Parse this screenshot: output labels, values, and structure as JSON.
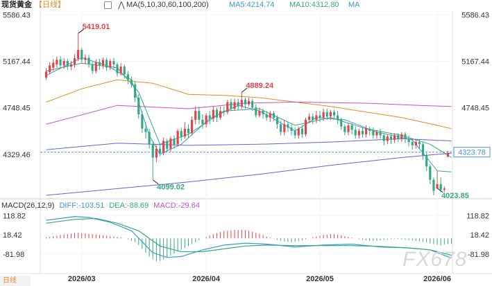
{
  "header": {
    "instrument": "现货黄金",
    "period": "【日线】",
    "ma_label": "MA(5,10,30,60,100,200)",
    "ma5": "MA5:4214.74",
    "ma10": "MA10:4312.80",
    "ma_more": "MA"
  },
  "macd_header": {
    "label": "MACD(26,12,9)",
    "diff": "DIFF:-103.51",
    "dea": "DEA:-88.69",
    "macd": "MACD:-29.64"
  },
  "watermark": "FX678",
  "footer_left": "日线",
  "colors": {
    "up": "#e0434b",
    "down": "#35a882",
    "ma5": "#3c9ac9",
    "ma10": "#35a882",
    "ma30": "#e58a2a",
    "ma60": "#c254c8",
    "ma100": "#6b5fd6",
    "ma200": "#6b5fd6",
    "diff": "#3c9ac9",
    "dea": "#35a882",
    "current_price": "#4a8fdb"
  },
  "chart_data": [
    {
      "type": "candlestick",
      "title": "现货黄金 日线",
      "price_axis_ticks": [
        "5586.43",
        "5167.44",
        "4748.45",
        "4329.46"
      ],
      "x_tick_labels": [
        "2026/03",
        "2026/04",
        "2026/05",
        "2026/06"
      ],
      "ylim": [
        3960,
        5620
      ],
      "current_price": "4323.78",
      "annotations": [
        {
          "text": "5419.01",
          "value": 5419.01,
          "index": 9,
          "kind": "high"
        },
        {
          "text": "4889.24",
          "value": 4889.24,
          "index": 55,
          "kind": "high"
        },
        {
          "text": "4099.02",
          "value": 4099.02,
          "index": 30,
          "kind": "low"
        },
        {
          "text": "4023.85",
          "value": 4023.85,
          "index": 110,
          "kind": "low"
        }
      ],
      "month_start_index": [
        10,
        45,
        77,
        110
      ],
      "candles": [
        [
          5020,
          5075,
          5000,
          5105
        ],
        [
          5070,
          5130,
          5050,
          5160
        ],
        [
          5110,
          5155,
          5080,
          5190
        ],
        [
          5140,
          5180,
          5110,
          5210
        ],
        [
          5185,
          5130,
          5100,
          5215
        ],
        [
          5130,
          5170,
          5100,
          5195
        ],
        [
          5170,
          5120,
          5090,
          5190
        ],
        [
          5120,
          5140,
          5090,
          5170
        ],
        [
          5140,
          5195,
          5110,
          5230
        ],
        [
          5190,
          5270,
          5170,
          5419.01
        ],
        [
          5270,
          5180,
          5150,
          5290
        ],
        [
          5180,
          5200,
          5140,
          5230
        ],
        [
          5200,
          5140,
          5110,
          5225
        ],
        [
          5140,
          5080,
          5050,
          5165
        ],
        [
          5080,
          5160,
          5060,
          5185
        ],
        [
          5160,
          5130,
          5090,
          5190
        ],
        [
          5130,
          5180,
          5100,
          5200
        ],
        [
          5180,
          5110,
          5080,
          5200
        ],
        [
          5110,
          5170,
          5090,
          5190
        ],
        [
          5170,
          5140,
          5090,
          5200
        ],
        [
          5140,
          5060,
          5030,
          5160
        ],
        [
          5060,
          5120,
          5040,
          5150
        ],
        [
          5120,
          5050,
          5010,
          5140
        ],
        [
          5050,
          5000,
          4960,
          5080
        ],
        [
          5000,
          4960,
          4930,
          5030
        ],
        [
          4960,
          4840,
          4800,
          4990
        ],
        [
          4840,
          4690,
          4650,
          4870
        ],
        [
          4690,
          4560,
          4520,
          4720
        ],
        [
          4560,
          4530,
          4470,
          4620
        ],
        [
          4530,
          4420,
          4380,
          4560
        ],
        [
          4420,
          4300,
          4099.02,
          4450
        ],
        [
          4300,
          4380,
          4260,
          4410
        ],
        [
          4380,
          4340,
          4310,
          4420
        ],
        [
          4340,
          4450,
          4320,
          4480
        ],
        [
          4450,
          4380,
          4350,
          4470
        ],
        [
          4380,
          4470,
          4350,
          4490
        ],
        [
          4470,
          4420,
          4380,
          4500
        ],
        [
          4420,
          4540,
          4400,
          4560
        ],
        [
          4540,
          4490,
          4450,
          4570
        ],
        [
          4490,
          4560,
          4470,
          4620
        ],
        [
          4560,
          4520,
          4480,
          4600
        ],
        [
          4520,
          4640,
          4500,
          4670
        ],
        [
          4640,
          4720,
          4600,
          4760
        ],
        [
          4720,
          4640,
          4600,
          4760
        ],
        [
          4640,
          4600,
          4560,
          4690
        ],
        [
          4600,
          4680,
          4570,
          4700
        ],
        [
          4680,
          4650,
          4600,
          4720
        ],
        [
          4650,
          4730,
          4620,
          4760
        ],
        [
          4730,
          4660,
          4620,
          4750
        ],
        [
          4660,
          4720,
          4640,
          4760
        ],
        [
          4720,
          4710,
          4670,
          4760
        ],
        [
          4710,
          4800,
          4690,
          4820
        ],
        [
          4800,
          4740,
          4720,
          4830
        ],
        [
          4740,
          4800,
          4720,
          4830
        ],
        [
          4800,
          4760,
          4730,
          4830
        ],
        [
          4760,
          4820,
          4740,
          4889.24
        ],
        [
          4820,
          4780,
          4740,
          4840
        ],
        [
          4780,
          4810,
          4760,
          4840
        ],
        [
          4810,
          4750,
          4720,
          4830
        ],
        [
          4750,
          4680,
          4660,
          4780
        ],
        [
          4680,
          4720,
          4660,
          4750
        ],
        [
          4720,
          4690,
          4650,
          4740
        ],
        [
          4690,
          4660,
          4630,
          4720
        ],
        [
          4660,
          4700,
          4620,
          4720
        ],
        [
          4700,
          4660,
          4630,
          4720
        ],
        [
          4660,
          4600,
          4560,
          4680
        ],
        [
          4600,
          4530,
          4500,
          4630
        ],
        [
          4530,
          4600,
          4500,
          4640
        ],
        [
          4600,
          4570,
          4530,
          4620
        ],
        [
          4570,
          4540,
          4500,
          4600
        ],
        [
          4540,
          4500,
          4470,
          4570
        ],
        [
          4500,
          4560,
          4470,
          4580
        ],
        [
          4560,
          4510,
          4480,
          4590
        ],
        [
          4510,
          4640,
          4490,
          4660
        ],
        [
          4640,
          4670,
          4610,
          4700
        ],
        [
          4670,
          4640,
          4600,
          4700
        ],
        [
          4640,
          4680,
          4610,
          4720
        ],
        [
          4680,
          4660,
          4620,
          4720
        ],
        [
          4660,
          4710,
          4630,
          4740
        ],
        [
          4710,
          4670,
          4640,
          4740
        ],
        [
          4670,
          4710,
          4640,
          4730
        ],
        [
          4710,
          4680,
          4640,
          4730
        ],
        [
          4680,
          4640,
          4600,
          4720
        ],
        [
          4640,
          4580,
          4550,
          4660
        ],
        [
          4580,
          4530,
          4500,
          4600
        ],
        [
          4530,
          4590,
          4500,
          4610
        ],
        [
          4590,
          4550,
          4510,
          4610
        ],
        [
          4550,
          4500,
          4470,
          4580
        ],
        [
          4500,
          4540,
          4470,
          4560
        ],
        [
          4540,
          4510,
          4480,
          4570
        ],
        [
          4510,
          4560,
          4480,
          4590
        ],
        [
          4560,
          4540,
          4500,
          4580
        ],
        [
          4540,
          4500,
          4470,
          4570
        ],
        [
          4500,
          4530,
          4470,
          4550
        ],
        [
          4530,
          4500,
          4470,
          4560
        ],
        [
          4500,
          4450,
          4410,
          4520
        ],
        [
          4450,
          4490,
          4420,
          4510
        ],
        [
          4490,
          4460,
          4420,
          4520
        ],
        [
          4460,
          4500,
          4430,
          4520
        ],
        [
          4500,
          4470,
          4440,
          4520
        ],
        [
          4470,
          4510,
          4440,
          4530
        ],
        [
          4510,
          4470,
          4430,
          4530
        ],
        [
          4470,
          4440,
          4400,
          4500
        ],
        [
          4440,
          4410,
          4370,
          4460
        ],
        [
          4410,
          4440,
          4380,
          4460
        ],
        [
          4440,
          4420,
          4380,
          4460
        ],
        [
          4420,
          4320,
          4280,
          4440
        ],
        [
          4320,
          4220,
          4180,
          4340
        ],
        [
          4220,
          4100,
          4060,
          4240
        ],
        [
          4100,
          4000,
          3960,
          4120
        ],
        [
          4020,
          4060,
          4023.85,
          4180
        ],
        [
          4060,
          4010,
          3990,
          4120
        ],
        [
          4010,
          4020,
          3990,
          4040
        ],
        [
          4310,
          4340,
          4300,
          4360
        ]
      ],
      "moving_averages": [
        {
          "name": "MA5",
          "values": [
            [
              0,
              5040
            ],
            [
              10,
              5200
            ],
            [
              17,
              5130
            ],
            [
              24,
              5000
            ],
            [
              29,
              4500
            ],
            [
              32,
              4330
            ],
            [
              38,
              4420
            ],
            [
              46,
              4650
            ],
            [
              54,
              4770
            ],
            [
              60,
              4720
            ],
            [
              70,
              4540
            ],
            [
              76,
              4660
            ],
            [
              84,
              4640
            ],
            [
              93,
              4530
            ],
            [
              103,
              4460
            ],
            [
              110,
              4180
            ],
            [
              114,
              4170
            ]
          ]
        },
        {
          "name": "MA10",
          "values": [
            [
              0,
              5080
            ],
            [
              10,
              5150
            ],
            [
              20,
              5110
            ],
            [
              26,
              4890
            ],
            [
              32,
              4420
            ],
            [
              40,
              4510
            ],
            [
              50,
              4720
            ],
            [
              60,
              4740
            ],
            [
              70,
              4590
            ],
            [
              80,
              4660
            ],
            [
              90,
              4560
            ],
            [
              100,
              4500
            ],
            [
              108,
              4420
            ],
            [
              114,
              4300
            ]
          ]
        },
        {
          "name": "MA30",
          "values": [
            [
              0,
              4800
            ],
            [
              10,
              4920
            ],
            [
              20,
              5000
            ],
            [
              30,
              4970
            ],
            [
              40,
              4870
            ],
            [
              50,
              4860
            ],
            [
              60,
              4840
            ],
            [
              70,
              4800
            ],
            [
              80,
              4760
            ],
            [
              90,
              4710
            ],
            [
              100,
              4660
            ],
            [
              110,
              4590
            ],
            [
              114,
              4560
            ]
          ]
        },
        {
          "name": "MA60",
          "values": [
            [
              0,
              4600
            ],
            [
              20,
              4770
            ],
            [
              40,
              4740
            ],
            [
              56,
              4790
            ],
            [
              70,
              4800
            ],
            [
              90,
              4790
            ],
            [
              105,
              4770
            ],
            [
              114,
              4760
            ]
          ]
        },
        {
          "name": "MA100",
          "values": [
            [
              0,
              4370
            ],
            [
              20,
              4430
            ],
            [
              40,
              4410
            ],
            [
              60,
              4420
            ],
            [
              80,
              4440
            ],
            [
              100,
              4470
            ],
            [
              114,
              4450
            ]
          ]
        },
        {
          "name": "MA200",
          "values": [
            [
              0,
              3960
            ],
            [
              20,
              4020
            ],
            [
              40,
              4080
            ],
            [
              60,
              4150
            ],
            [
              80,
              4230
            ],
            [
              100,
              4300
            ],
            [
              114,
              4340
            ]
          ]
        }
      ]
    },
    {
      "type": "macd",
      "title": "MACD(26,12,9)",
      "axis_ticks": [
        "118.82",
        "18.42",
        "-81.98"
      ],
      "ylim": [
        -130,
        150
      ],
      "diff": [
        [
          0,
          95
        ],
        [
          8,
          115
        ],
        [
          12,
          110
        ],
        [
          18,
          85
        ],
        [
          24,
          40
        ],
        [
          30,
          -75
        ],
        [
          34,
          -100
        ],
        [
          38,
          -95
        ],
        [
          44,
          -60
        ],
        [
          50,
          -35
        ],
        [
          56,
          -25
        ],
        [
          62,
          -30
        ],
        [
          70,
          -45
        ],
        [
          78,
          -35
        ],
        [
          86,
          -30
        ],
        [
          94,
          -45
        ],
        [
          102,
          -50
        ],
        [
          108,
          -60
        ],
        [
          114,
          -103.51
        ]
      ],
      "dea": [
        [
          0,
          80
        ],
        [
          8,
          100
        ],
        [
          14,
          105
        ],
        [
          20,
          80
        ],
        [
          26,
          40
        ],
        [
          32,
          -40
        ],
        [
          38,
          -70
        ],
        [
          44,
          -70
        ],
        [
          50,
          -55
        ],
        [
          56,
          -40
        ],
        [
          62,
          -35
        ],
        [
          70,
          -38
        ],
        [
          78,
          -38
        ],
        [
          86,
          -38
        ],
        [
          94,
          -42
        ],
        [
          102,
          -50
        ],
        [
          108,
          -60
        ],
        [
          114,
          -88.69
        ]
      ],
      "histogram": [
        5,
        8,
        12,
        15,
        18,
        20,
        22,
        25,
        28,
        30,
        28,
        26,
        24,
        22,
        20,
        18,
        16,
        14,
        12,
        10,
        8,
        5,
        0,
        -5,
        -12,
        -20,
        -35,
        -55,
        -75,
        -95,
        -110,
        -120,
        -118,
        -110,
        -100,
        -90,
        -80,
        -70,
        -60,
        -50,
        -40,
        -30,
        -20,
        -10,
        0,
        8,
        15,
        22,
        28,
        34,
        38,
        40,
        42,
        44,
        45,
        46,
        44,
        40,
        35,
        30,
        25,
        18,
        10,
        4,
        -2,
        -8,
        -12,
        -16,
        -18,
        -20,
        -18,
        -15,
        -10,
        -5,
        0,
        5,
        10,
        14,
        18,
        20,
        22,
        22,
        20,
        16,
        12,
        8,
        4,
        0,
        -4,
        -8,
        -10,
        -12,
        -14,
        -12,
        -10,
        -8,
        -6,
        -4,
        -2,
        -4,
        -6,
        -8,
        -10,
        -12,
        -14,
        -16,
        -18,
        -22,
        -26,
        -30,
        -34,
        -36,
        -32,
        -29.64,
        -29.64
      ]
    }
  ]
}
